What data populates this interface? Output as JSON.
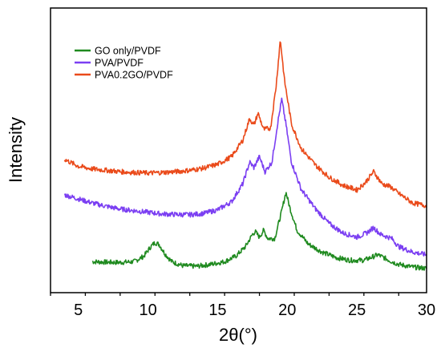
{
  "chart_data": {
    "type": "line",
    "xlabel": "2θ(°)",
    "ylabel": "Intensity",
    "xlim": [
      3,
      30
    ],
    "xticks": [
      5,
      10,
      15,
      20,
      25,
      30
    ],
    "y_ticks_shown": false,
    "grid": false,
    "legend_position": "top-left",
    "series": [
      {
        "name": "GO only/PVDF",
        "color": "#1f8a1f",
        "points": [
          [
            6.0,
            0.055
          ],
          [
            7.0,
            0.053
          ],
          [
            8.0,
            0.052
          ],
          [
            9.0,
            0.055
          ],
          [
            9.7,
            0.075
          ],
          [
            10.2,
            0.11
          ],
          [
            10.5,
            0.125
          ],
          [
            10.8,
            0.118
          ],
          [
            11.2,
            0.085
          ],
          [
            11.7,
            0.055
          ],
          [
            12.5,
            0.04
          ],
          [
            13.5,
            0.038
          ],
          [
            14.5,
            0.045
          ],
          [
            15.5,
            0.055
          ],
          [
            16.3,
            0.075
          ],
          [
            17.0,
            0.11
          ],
          [
            17.5,
            0.155
          ],
          [
            17.7,
            0.165
          ],
          [
            18.0,
            0.145
          ],
          [
            18.3,
            0.17
          ],
          [
            18.6,
            0.14
          ],
          [
            19.1,
            0.14
          ],
          [
            19.6,
            0.24
          ],
          [
            19.9,
            0.31
          ],
          [
            20.2,
            0.25
          ],
          [
            20.7,
            0.17
          ],
          [
            21.5,
            0.12
          ],
          [
            22.5,
            0.09
          ],
          [
            23.5,
            0.07
          ],
          [
            24.5,
            0.06
          ],
          [
            25.5,
            0.06
          ],
          [
            26.0,
            0.07
          ],
          [
            26.5,
            0.08
          ],
          [
            27.0,
            0.068
          ],
          [
            27.5,
            0.055
          ],
          [
            28.0,
            0.045
          ],
          [
            29.0,
            0.035
          ],
          [
            30.0,
            0.03
          ]
        ]
      },
      {
        "name": "PVA/PVDF",
        "color": "#7b3ff2",
        "points": [
          [
            4.0,
            0.3
          ],
          [
            5.0,
            0.285
          ],
          [
            6.0,
            0.27
          ],
          [
            7.0,
            0.258
          ],
          [
            8.0,
            0.248
          ],
          [
            9.0,
            0.242
          ],
          [
            10.0,
            0.236
          ],
          [
            11.0,
            0.23
          ],
          [
            12.0,
            0.228
          ],
          [
            13.0,
            0.227
          ],
          [
            14.0,
            0.232
          ],
          [
            15.0,
            0.245
          ],
          [
            16.0,
            0.275
          ],
          [
            16.8,
            0.34
          ],
          [
            17.3,
            0.42
          ],
          [
            17.6,
            0.4
          ],
          [
            18.0,
            0.44
          ],
          [
            18.4,
            0.385
          ],
          [
            18.9,
            0.42
          ],
          [
            19.3,
            0.56
          ],
          [
            19.6,
            0.65
          ],
          [
            19.9,
            0.56
          ],
          [
            20.3,
            0.42
          ],
          [
            21.0,
            0.32
          ],
          [
            22.0,
            0.25
          ],
          [
            23.0,
            0.195
          ],
          [
            24.0,
            0.16
          ],
          [
            25.0,
            0.145
          ],
          [
            25.7,
            0.16
          ],
          [
            26.2,
            0.18
          ],
          [
            26.7,
            0.155
          ],
          [
            27.5,
            0.14
          ],
          [
            28.0,
            0.11
          ],
          [
            29.0,
            0.09
          ],
          [
            30.0,
            0.08
          ]
        ]
      },
      {
        "name": "PVA0.2GO/PVDF",
        "color": "#ea4a1a",
        "points": [
          [
            4.0,
            0.43
          ],
          [
            5.0,
            0.405
          ],
          [
            6.0,
            0.395
          ],
          [
            7.0,
            0.39
          ],
          [
            8.0,
            0.385
          ],
          [
            9.0,
            0.382
          ],
          [
            10.0,
            0.38
          ],
          [
            11.0,
            0.382
          ],
          [
            12.0,
            0.385
          ],
          [
            13.0,
            0.39
          ],
          [
            14.0,
            0.398
          ],
          [
            15.0,
            0.412
          ],
          [
            16.0,
            0.44
          ],
          [
            16.8,
            0.5
          ],
          [
            17.3,
            0.58
          ],
          [
            17.6,
            0.555
          ],
          [
            17.9,
            0.6
          ],
          [
            18.3,
            0.54
          ],
          [
            18.8,
            0.545
          ],
          [
            19.2,
            0.7
          ],
          [
            19.5,
            0.87
          ],
          [
            19.8,
            0.72
          ],
          [
            20.3,
            0.56
          ],
          [
            21.0,
            0.47
          ],
          [
            22.0,
            0.41
          ],
          [
            23.0,
            0.365
          ],
          [
            24.0,
            0.335
          ],
          [
            25.0,
            0.318
          ],
          [
            25.6,
            0.345
          ],
          [
            26.2,
            0.385
          ],
          [
            26.8,
            0.34
          ],
          [
            27.4,
            0.33
          ],
          [
            28.0,
            0.305
          ],
          [
            29.0,
            0.27
          ],
          [
            30.0,
            0.26
          ]
        ]
      }
    ]
  }
}
